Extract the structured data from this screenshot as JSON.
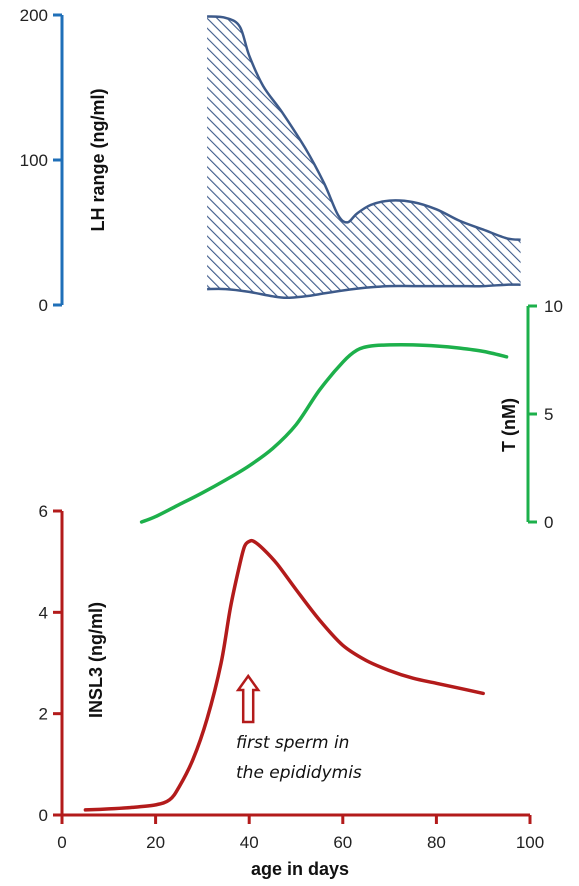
{
  "chart_data": [
    {
      "id": "lh",
      "type": "area",
      "ylabel": "LH range (ng/ml)",
      "ylim": [
        0,
        200
      ],
      "yticks": [
        0,
        100,
        200
      ],
      "axis_color": "#1f6fb8",
      "series_color": "#3d5a8a",
      "fill_pattern": "diagonal-hatch",
      "upper": {
        "x": [
          31,
          35,
          38,
          40,
          43,
          47,
          52,
          56,
          59,
          61,
          63,
          66,
          70,
          75,
          80,
          85,
          90,
          95,
          98
        ],
        "values": [
          199,
          198,
          192,
          172,
          151,
          133,
          108,
          84,
          62,
          57,
          63,
          69,
          72,
          71,
          66,
          58,
          52,
          46,
          45
        ]
      },
      "lower": {
        "x": [
          31,
          35,
          40,
          45,
          48,
          52,
          56,
          60,
          65,
          70,
          75,
          80,
          85,
          90,
          95,
          98
        ],
        "values": [
          11,
          11,
          9,
          6,
          5,
          6,
          8,
          10,
          12,
          13,
          13,
          13,
          13,
          13,
          14,
          14
        ]
      }
    },
    {
      "id": "testosterone",
      "type": "line",
      "ylabel": "T (nM)",
      "ylim": [
        0,
        10
      ],
      "yticks": [
        0,
        5,
        10
      ],
      "axis_color": "#1db04b",
      "series_color": "#1db04b",
      "x": [
        17,
        20,
        25,
        30,
        35,
        40,
        45,
        50,
        55,
        60,
        63,
        66,
        70,
        75,
        80,
        85,
        90,
        95
      ],
      "values": [
        0,
        0.25,
        0.8,
        1.35,
        1.95,
        2.6,
        3.4,
        4.5,
        6.1,
        7.4,
        7.95,
        8.15,
        8.2,
        8.2,
        8.15,
        8.05,
        7.9,
        7.65
      ]
    },
    {
      "id": "insl3",
      "type": "line",
      "ylabel": "INSL3 (ng/ml)",
      "xlabel": "age in days",
      "ylim": [
        0,
        6
      ],
      "yticks": [
        0,
        2,
        4,
        6
      ],
      "xlim": [
        0,
        100
      ],
      "xticks": [
        0,
        20,
        40,
        60,
        80,
        100
      ],
      "axis_color": "#b31b1b",
      "series_color": "#b31b1b",
      "x": [
        5,
        10,
        15,
        20,
        23,
        25,
        28,
        31,
        34,
        36,
        38,
        39,
        40,
        41,
        43,
        46,
        50,
        55,
        60,
        65,
        70,
        75,
        80,
        85,
        90
      ],
      "values": [
        0.1,
        0.12,
        0.15,
        0.2,
        0.3,
        0.55,
        1.1,
        1.9,
        3.0,
        4.1,
        4.95,
        5.3,
        5.4,
        5.4,
        5.25,
        4.95,
        4.45,
        3.85,
        3.35,
        3.05,
        2.85,
        2.7,
        2.6,
        2.5,
        2.4
      ],
      "annotation": {
        "lines": [
          "first sperm in",
          "the epididymis"
        ],
        "arrow_x": 40
      }
    }
  ]
}
